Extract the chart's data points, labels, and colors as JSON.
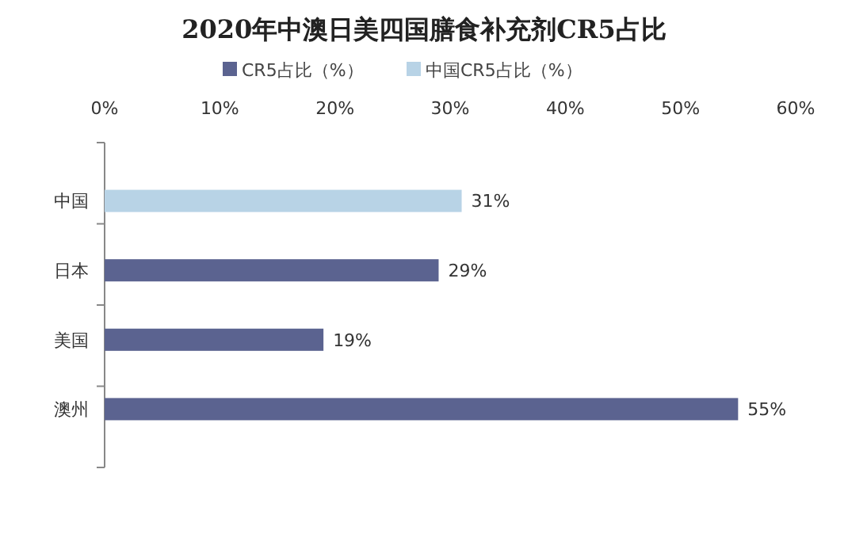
{
  "chart_data": {
    "type": "bar",
    "orientation": "horizontal",
    "title": "2020年中澳日美四国膳食补充剂CR5占比",
    "categories": [
      "中国",
      "日本",
      "美国",
      "澳州"
    ],
    "series": [
      {
        "name": "CR5占比（%）",
        "color": "#5b6390",
        "values": [
          null,
          29,
          19,
          55
        ],
        "value_labels": [
          null,
          "29%",
          "19%",
          "55%"
        ]
      },
      {
        "name": "中国CR5占比（%）",
        "color": "#b8d3e6",
        "values": [
          31,
          null,
          null,
          null
        ],
        "value_labels": [
          "31%",
          null,
          null,
          null
        ]
      }
    ],
    "xlim": [
      0,
      60
    ],
    "xticks": [
      {
        "value": 0,
        "label": "0%"
      },
      {
        "value": 10,
        "label": "10%"
      },
      {
        "value": 20,
        "label": "20%"
      },
      {
        "value": 30,
        "label": "30%"
      },
      {
        "value": 40,
        "label": "40%"
      },
      {
        "value": 50,
        "label": "50%"
      },
      {
        "value": 60,
        "label": "60%"
      }
    ],
    "grid": false,
    "legend": "top"
  }
}
